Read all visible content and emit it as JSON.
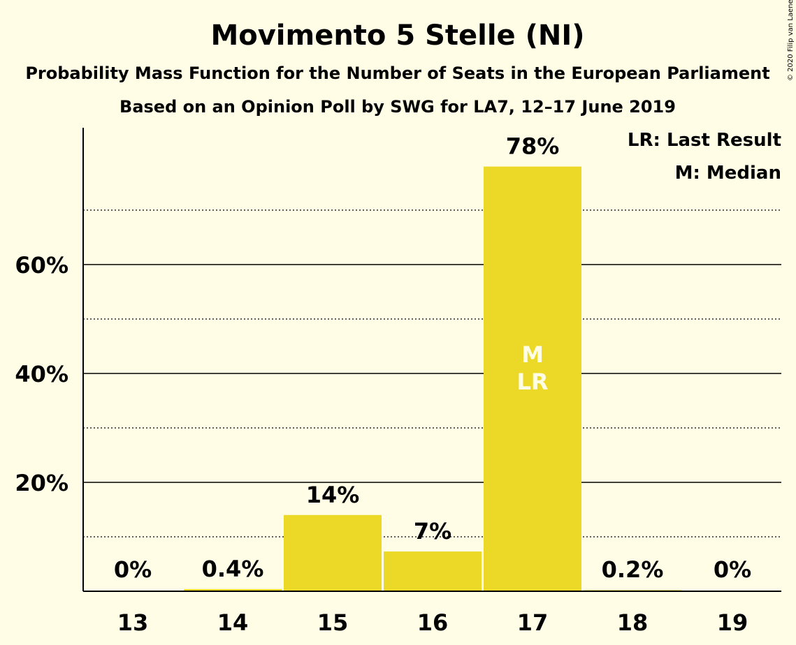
{
  "chart_data": {
    "type": "bar",
    "title": "Movimento 5 Stelle (NI)",
    "subtitle": "Probability Mass Function for the Number of Seats in the European Parliament",
    "subtitle2": "Based on an Opinion Poll by SWG for LA7, 12–17 June 2019",
    "categories": [
      "13",
      "14",
      "15",
      "16",
      "17",
      "18",
      "19"
    ],
    "values": [
      0,
      0.4,
      14,
      7.3,
      78,
      0.2,
      0
    ],
    "data_labels": [
      "0%",
      "0.4%",
      "14%",
      "7%",
      "78%",
      "0.2%",
      "0%"
    ],
    "ylim": [
      0,
      85
    ],
    "yticks": [
      20,
      40,
      60
    ],
    "ytick_labels": [
      "20%",
      "40%",
      "60%"
    ],
    "minor_gridlines": [
      10,
      30,
      50,
      70
    ],
    "bar_color": "#ECD927",
    "grid": true,
    "legend_position": "top-right",
    "legend": [
      "LR: Last Result",
      "M: Median"
    ],
    "bar_annotations": [
      {
        "category": "17",
        "lines": [
          "M",
          "LR"
        ]
      }
    ],
    "copyright": "© 2020 Filip van Laenen"
  }
}
